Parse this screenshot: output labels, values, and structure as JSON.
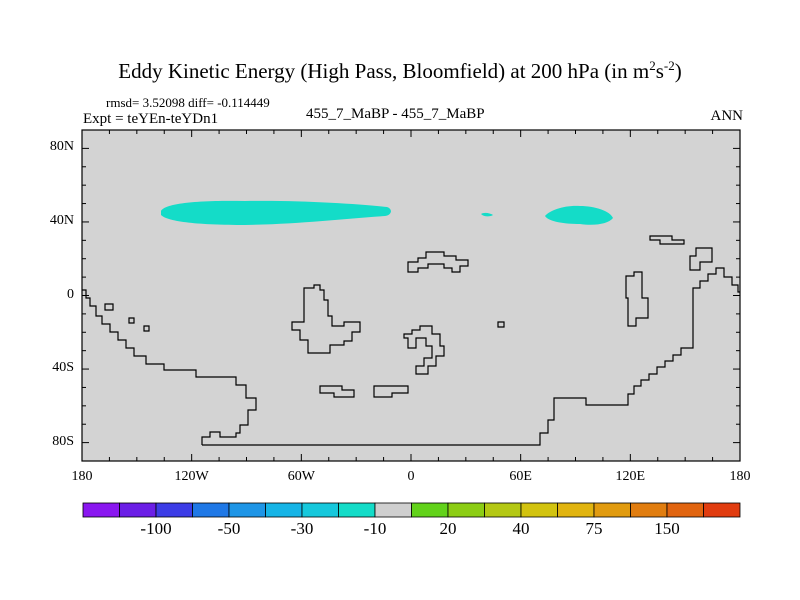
{
  "header": {
    "title": "Eddy Kinetic Energy (High Pass, Bloomfield) at 200 hPa (in m",
    "title_sup1": "2",
    "title_mid": "s",
    "title_sup2": "-2",
    "title_end": ")",
    "stats": "rmsd= 3.52098 diff= -0.114449",
    "expt": "Expt = teYEn-teYDn1",
    "center_label": "455_7_MaBP - 455_7_MaBP",
    "season": "ANN"
  },
  "chart_data": {
    "type": "heatmap",
    "title": "Eddy Kinetic Energy (High Pass, Bloomfield) at 200 hPa (in m^2 s^-2)",
    "x_range": [
      -180,
      180
    ],
    "y_range": [
      -90,
      90
    ],
    "x_ticks": [
      "180",
      "120W",
      "60W",
      "0",
      "60E",
      "120E",
      "180"
    ],
    "y_ticks": [
      "80N",
      "40N",
      "0",
      "40S",
      "80S"
    ],
    "background_level": "0 (between -10 and 10)",
    "highlighted_regions": [
      {
        "level": "-10 to -20",
        "lon_range": [
          -136,
          -12
        ],
        "lat_range": [
          38,
          50
        ]
      },
      {
        "level": "-10 to -20",
        "lon_range": [
          38,
          46
        ],
        "lat_range": [
          44,
          46
        ]
      },
      {
        "level": "-10 to -20",
        "lon_range": [
          73,
          109
        ],
        "lat_range": [
          38,
          50
        ]
      }
    ],
    "colorbar": {
      "labels": [
        "-100",
        "-50",
        "-30",
        "-10",
        "20",
        "40",
        "75",
        "150"
      ],
      "colors": [
        "#8a17f0",
        "#6b1ee6",
        "#3c3ce6",
        "#1f78e6",
        "#1e95e6",
        "#16b4e6",
        "#16c8dc",
        "#14dcc8",
        "#cfcfcf",
        "#62d21a",
        "#8ccd14",
        "#b4c814",
        "#d2c30f",
        "#e1b40f",
        "#e19b0f",
        "#e17d0f",
        "#e1640f",
        "#e13c0f"
      ]
    }
  },
  "colors": {
    "ocean": "#d3d3d3",
    "positive_band": "#14dcc8",
    "coast": "#000000"
  }
}
